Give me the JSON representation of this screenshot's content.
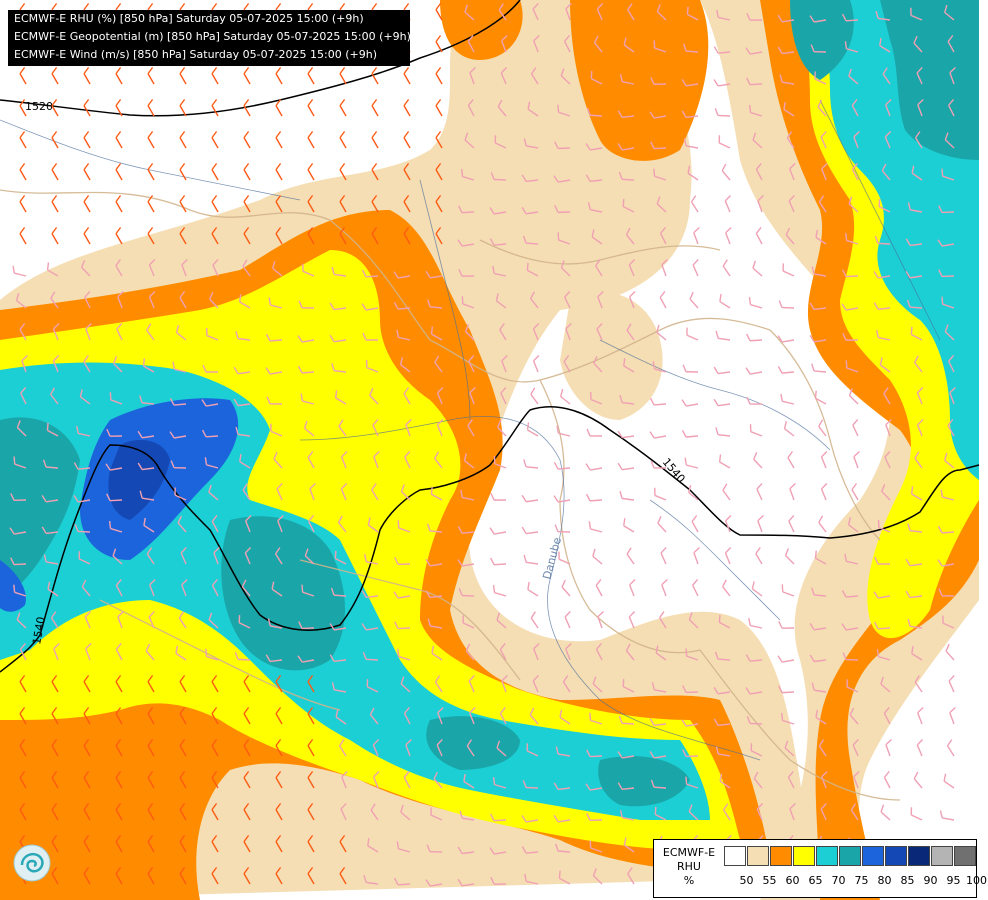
{
  "header": {
    "line1": "ECMWF-E RHU (%) [850 hPa] Saturday 05-07-2025 15:00 (+9h)",
    "line2": "ECMWF-E Geopotential (m) [850 hPa] Saturday 05-07-2025 15:00 (+9h)",
    "line3": "ECMWF-E Wind (m/s) [850 hPa] Saturday 05-07-2025 15:00 (+9h)"
  },
  "contours": {
    "label_1520": "1520",
    "label_1540a": "1540",
    "label_1540b": "1540"
  },
  "map_labels": {
    "river": "Danube"
  },
  "legend": {
    "title1": "ECMWF-E",
    "title2": "RHU",
    "unit": "%",
    "colors": [
      "#ffffff",
      "#f5deb3",
      "#ff8c00",
      "#ffff00",
      "#1ccfd4",
      "#1aa6a8",
      "#1c64dc",
      "#1448b4",
      "#0a2878",
      "#b4b4b4",
      "#707070"
    ],
    "ticks": [
      "50",
      "55",
      "60",
      "65",
      "70",
      "75",
      "80",
      "85",
      "90",
      "95",
      "100"
    ]
  },
  "colors": {
    "tan": "#f5deb3",
    "orange": "#ff8c00",
    "yellow": "#ffff00",
    "cyan": "#1ccfd4",
    "teal": "#1aa6a8",
    "blue": "#1c64dc",
    "darkblue": "#1448b4",
    "contour": "#000000",
    "border": "#d2b48c",
    "river": "#4a6c9a",
    "wind_pink": "#f0a0b4",
    "wind_orange": "#ff5a14"
  }
}
